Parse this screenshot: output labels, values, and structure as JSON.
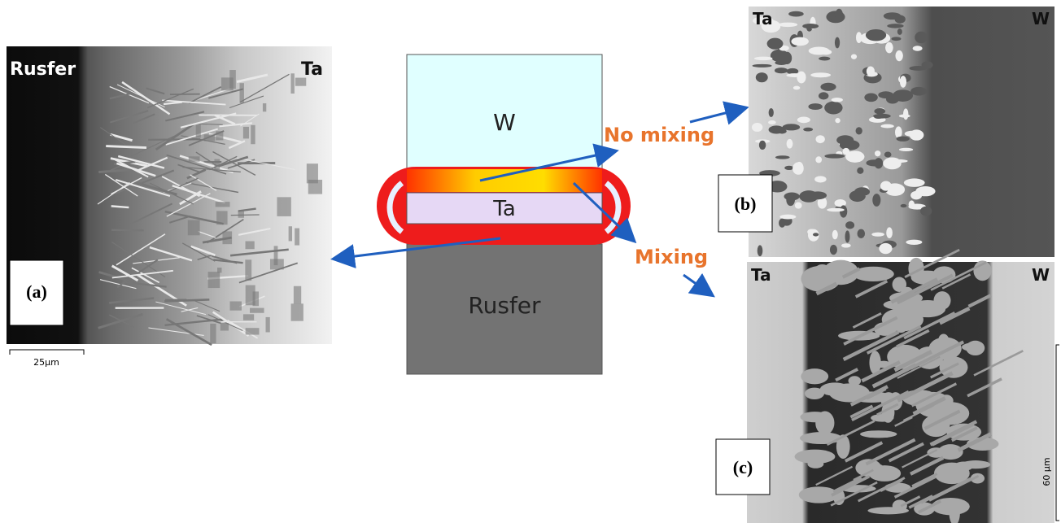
{
  "panel_a": {
    "left_label": "Rusfer",
    "right_label": "Ta",
    "tag": "(a)",
    "scale": "25µm"
  },
  "diagram": {
    "top_layer": "W",
    "middle_layer": "Ta",
    "bottom_layer": "Rusfer",
    "no_mixing": "No mixing",
    "mixing": "Mixing"
  },
  "panel_b": {
    "left_label": "Ta",
    "right_label": "W",
    "tag": "(b)"
  },
  "panel_c": {
    "left_label": "Ta",
    "right_label": "W",
    "tag": "(c)",
    "scale": "60 µm"
  }
}
